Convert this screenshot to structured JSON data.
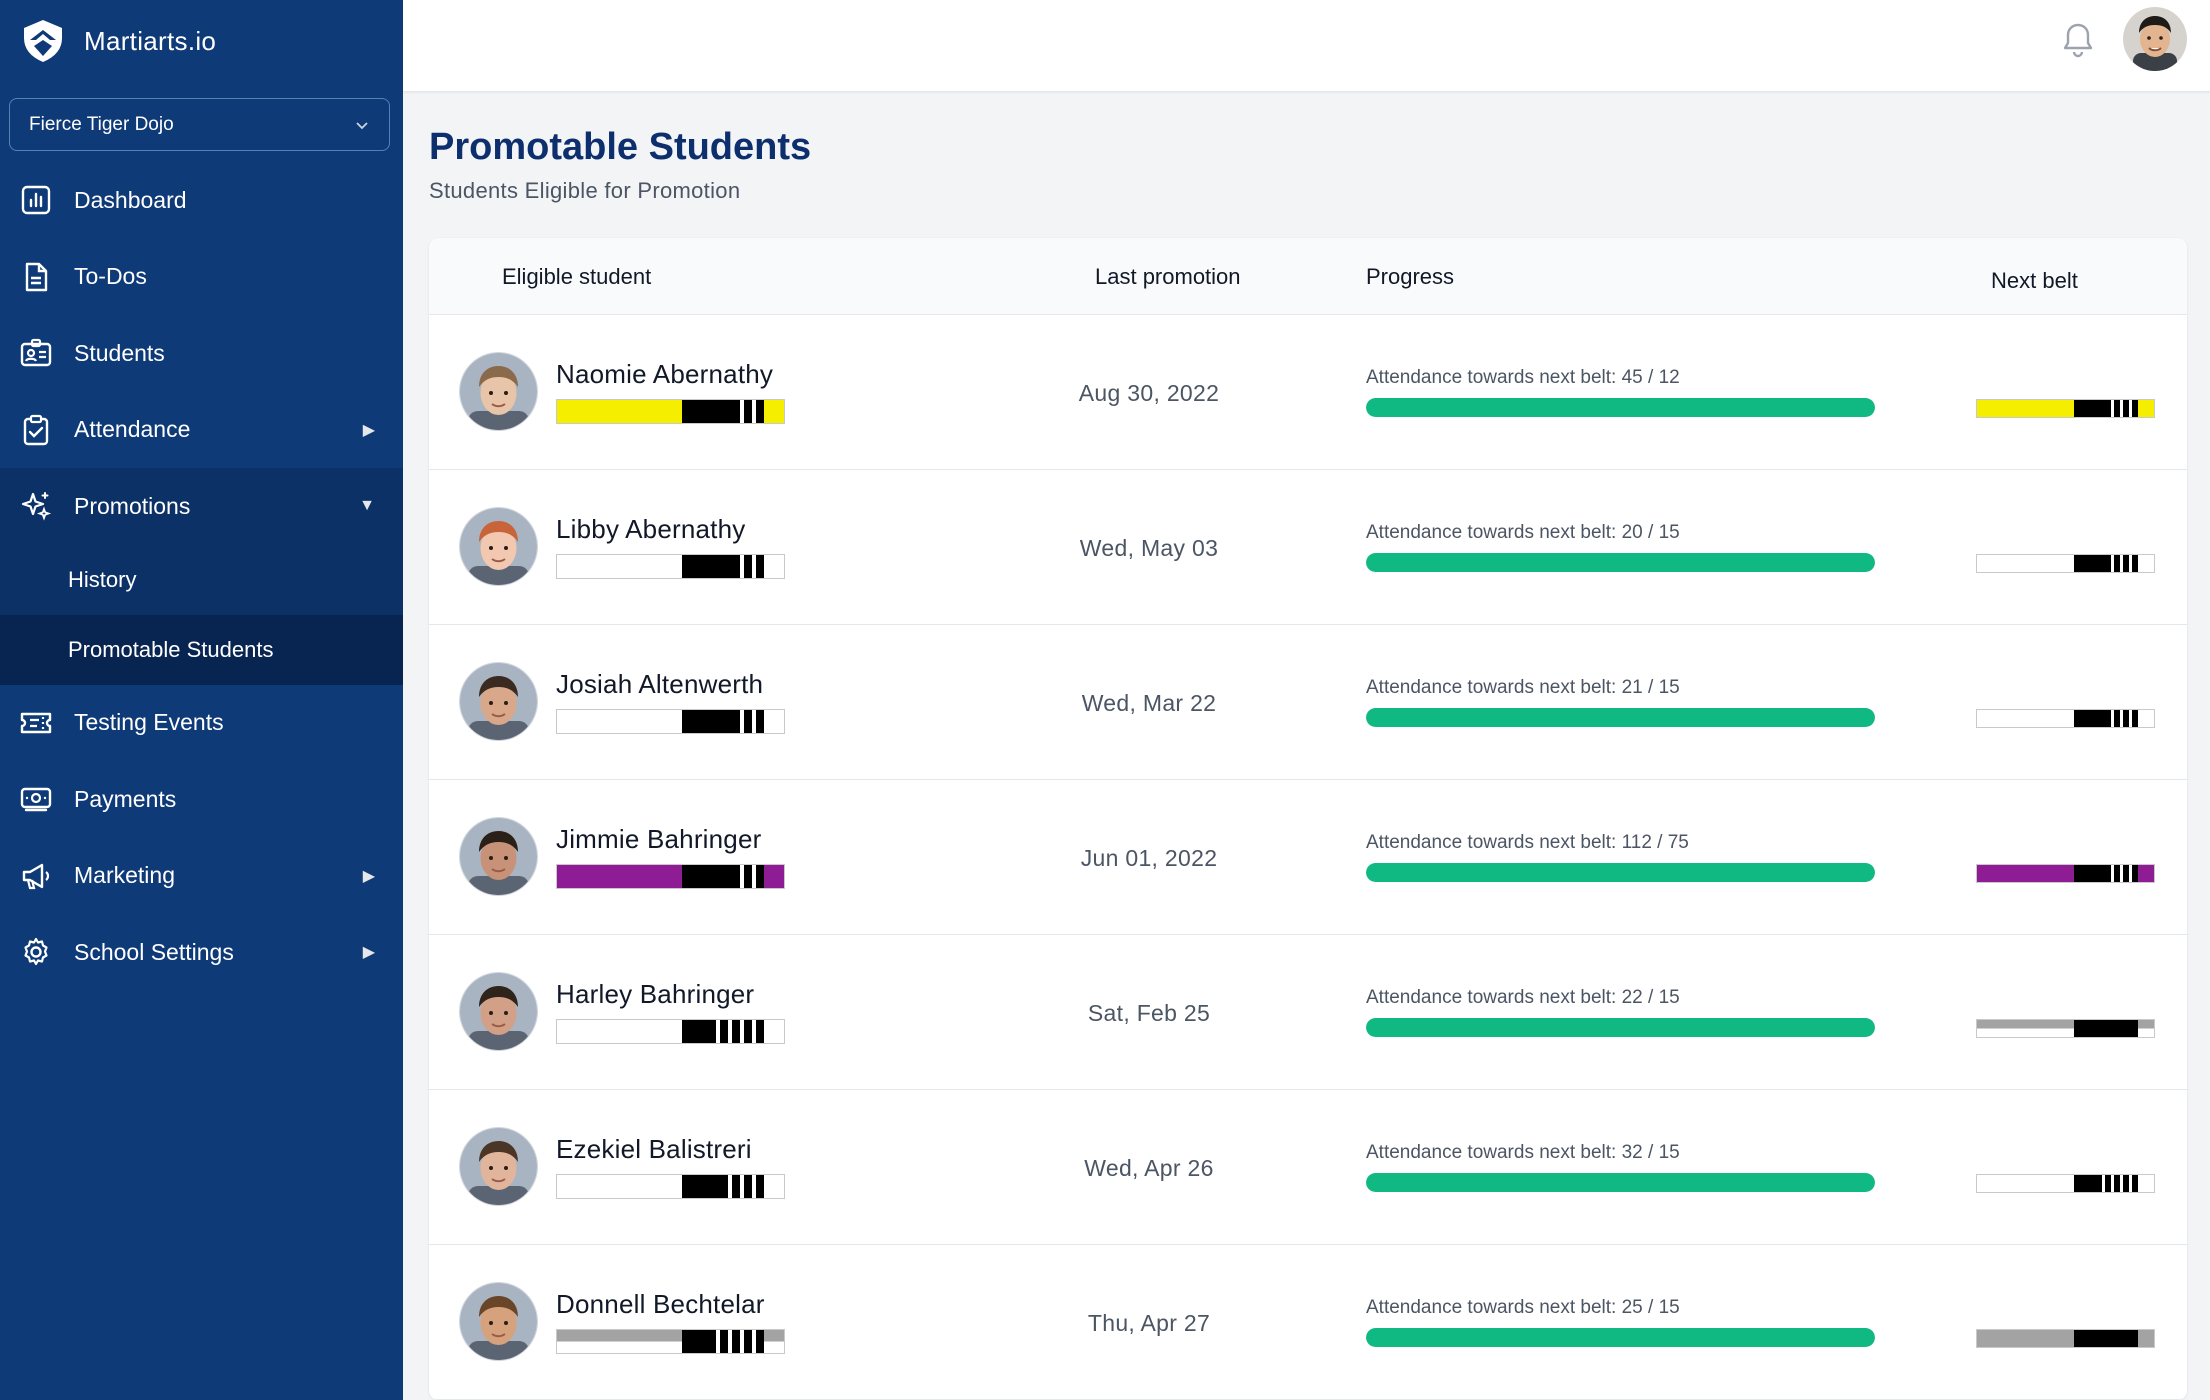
{
  "app": {
    "name": "Martiarts.io"
  },
  "school_select": {
    "value": "Fierce Tiger Dojo"
  },
  "nav": {
    "dashboard": "Dashboard",
    "todos": "To-Dos",
    "students": "Students",
    "attendance": "Attendance",
    "promotions": "Promotions",
    "history": "History",
    "promotable": "Promotable Students",
    "testing": "Testing Events",
    "payments": "Payments",
    "marketing": "Marketing",
    "settings": "School Settings"
  },
  "icons": {
    "dashboard": "chart-bar-icon",
    "todos": "document-icon",
    "students": "id-card-icon",
    "attendance": "clipboard-check-icon",
    "promotions": "sparkles-icon",
    "testing": "ticket-icon",
    "payments": "cash-icon",
    "marketing": "megaphone-icon",
    "settings": "gear-icon",
    "bell": "bell-icon"
  },
  "page": {
    "title": "Promotable Students",
    "subtitle": "Students Eligible for Promotion"
  },
  "table": {
    "headers": {
      "student": "Eligible student",
      "last_promotion": "Last promotion",
      "progress": "Progress",
      "next_belt": "Next belt"
    },
    "rows": [
      {
        "name": "Naomie Abernathy",
        "last": "Aug 30, 2022",
        "progress_text": "Attendance towards next belt: 45 / 12",
        "progress": 1.0,
        "cur_belt": {
          "color": "#f5ee00",
          "stripes": 2
        },
        "next_belt": {
          "color": "#f5ee00",
          "stripes": 3
        },
        "photo": {
          "skin": "#e8c4a8",
          "hair": "#8a6a4a"
        }
      },
      {
        "name": "Libby Abernathy",
        "last": "Wed, May 03",
        "progress_text": "Attendance towards next belt: 20 / 15",
        "progress": 1.0,
        "cur_belt": {
          "color": "#ffffff",
          "stripes": 2
        },
        "next_belt": {
          "color": "#ffffff",
          "stripes": 3
        },
        "photo": {
          "skin": "#f2c9b0",
          "hair": "#c8643a"
        }
      },
      {
        "name": "Josiah Altenwerth",
        "last": "Wed, Mar 22",
        "progress_text": "Attendance towards next belt: 21 / 15",
        "progress": 1.0,
        "cur_belt": {
          "color": "#ffffff",
          "stripes": 2
        },
        "next_belt": {
          "color": "#ffffff",
          "stripes": 3
        },
        "photo": {
          "skin": "#d9a88a",
          "hair": "#3a2a20"
        }
      },
      {
        "name": "Jimmie Bahringer",
        "last": "Jun 01, 2022",
        "progress_text": "Attendance towards next belt: 112 / 75",
        "progress": 1.0,
        "cur_belt": {
          "color": "#8e1c94",
          "stripes": 2
        },
        "next_belt": {
          "color": "#8e1c94",
          "stripes": 3
        },
        "photo": {
          "skin": "#c89278",
          "hair": "#2a2018"
        }
      },
      {
        "name": "Harley Bahringer",
        "last": "Sat, Feb 25",
        "progress_text": "Attendance towards next belt: 22 / 15",
        "progress": 1.0,
        "cur_belt": {
          "color": "#ffffff",
          "stripes": 4
        },
        "next_belt": {
          "color": "#ffffff",
          "stripes": 0,
          "top": "#a3a3a3"
        },
        "photo": {
          "skin": "#d2a086",
          "hair": "#2f241c"
        }
      },
      {
        "name": "Ezekiel Balistreri",
        "last": "Wed, Apr 26",
        "progress_text": "Attendance towards next belt: 32 / 15",
        "progress": 1.0,
        "cur_belt": {
          "color": "#ffffff",
          "stripes": 3
        },
        "next_belt": {
          "color": "#ffffff",
          "stripes": 4
        },
        "photo": {
          "skin": "#e1b59c",
          "hair": "#4a3526"
        }
      },
      {
        "name": "Donnell Bechtelar",
        "last": "Thu, Apr 27",
        "progress_text": "Attendance towards next belt: 25 / 15",
        "progress": 1.0,
        "cur_belt": {
          "color": "#ffffff",
          "stripes": 4,
          "top": "#a3a3a3"
        },
        "next_belt": {
          "color": "#a3a3a3",
          "stripes": 0
        },
        "photo": {
          "skin": "#d6a27e",
          "hair": "#6a4628"
        }
      }
    ]
  }
}
